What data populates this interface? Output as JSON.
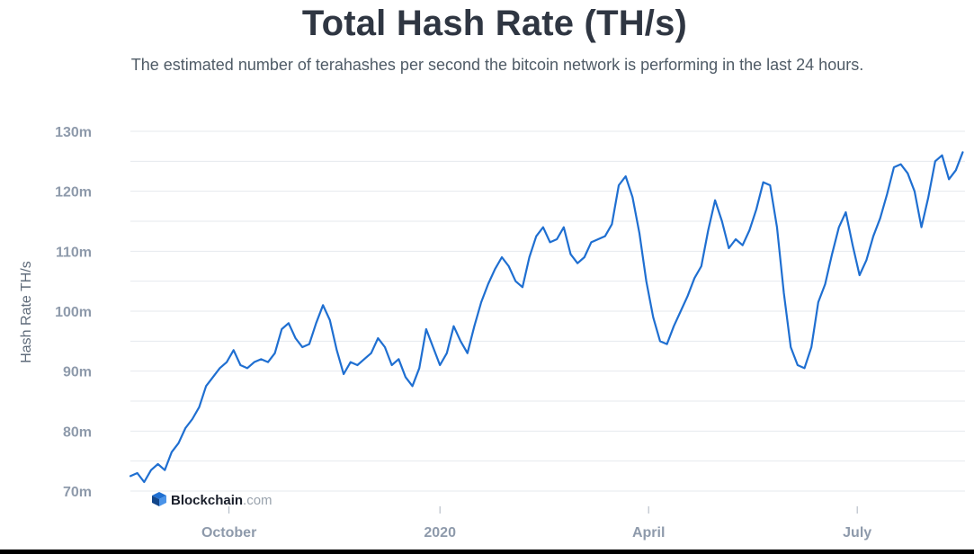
{
  "chart_data": {
    "type": "line",
    "title": "Total Hash Rate (TH/s)",
    "subtitle": "The estimated number of terahashes per second the bitcoin network is performing in the last 24 hours.",
    "ylabel": "Hash Rate TH/s",
    "xlabel": "",
    "ylim": [
      70,
      130
    ],
    "y_ticks": [
      {
        "value": 70,
        "label": "70m"
      },
      {
        "value": 80,
        "label": "80m"
      },
      {
        "value": 90,
        "label": "90m"
      },
      {
        "value": 100,
        "label": "100m"
      },
      {
        "value": 110,
        "label": "110m"
      },
      {
        "value": 120,
        "label": "120m"
      },
      {
        "value": 130,
        "label": "130m"
      }
    ],
    "x_ticks": [
      {
        "label": "October",
        "date": "2019-10-01"
      },
      {
        "label": "2020",
        "date": "2020-01-01"
      },
      {
        "label": "April",
        "date": "2020-04-01"
      },
      {
        "label": "July",
        "date": "2020-07-01"
      }
    ],
    "xlim": [
      "2019-08-19",
      "2020-08-17"
    ],
    "grid": true,
    "series": [
      {
        "color": "#1f6fd1",
        "points": [
          [
            "2019-08-19",
            72.5
          ],
          [
            "2019-08-22",
            73.0
          ],
          [
            "2019-08-25",
            71.5
          ],
          [
            "2019-08-28",
            73.5
          ],
          [
            "2019-08-31",
            74.5
          ],
          [
            "2019-09-03",
            73.5
          ],
          [
            "2019-09-06",
            76.5
          ],
          [
            "2019-09-09",
            78.0
          ],
          [
            "2019-09-12",
            80.5
          ],
          [
            "2019-09-15",
            82.0
          ],
          [
            "2019-09-18",
            84.0
          ],
          [
            "2019-09-21",
            87.5
          ],
          [
            "2019-09-24",
            89.0
          ],
          [
            "2019-09-27",
            90.5
          ],
          [
            "2019-09-30",
            91.5
          ],
          [
            "2019-10-03",
            93.5
          ],
          [
            "2019-10-06",
            91.0
          ],
          [
            "2019-10-09",
            90.5
          ],
          [
            "2019-10-12",
            91.5
          ],
          [
            "2019-10-15",
            92.0
          ],
          [
            "2019-10-18",
            91.5
          ],
          [
            "2019-10-21",
            93.0
          ],
          [
            "2019-10-24",
            97.0
          ],
          [
            "2019-10-27",
            98.0
          ],
          [
            "2019-10-30",
            95.5
          ],
          [
            "2019-11-02",
            94.0
          ],
          [
            "2019-11-05",
            94.5
          ],
          [
            "2019-11-08",
            98.0
          ],
          [
            "2019-11-11",
            101.0
          ],
          [
            "2019-11-14",
            98.5
          ],
          [
            "2019-11-17",
            93.5
          ],
          [
            "2019-11-20",
            89.5
          ],
          [
            "2019-11-23",
            91.5
          ],
          [
            "2019-11-26",
            91.0
          ],
          [
            "2019-11-29",
            92.0
          ],
          [
            "2019-12-02",
            93.0
          ],
          [
            "2019-12-05",
            95.5
          ],
          [
            "2019-12-08",
            94.0
          ],
          [
            "2019-12-11",
            91.0
          ],
          [
            "2019-12-14",
            92.0
          ],
          [
            "2019-12-17",
            89.0
          ],
          [
            "2019-12-20",
            87.5
          ],
          [
            "2019-12-23",
            90.5
          ],
          [
            "2019-12-26",
            97.0
          ],
          [
            "2019-12-29",
            94.0
          ],
          [
            "2020-01-01",
            91.0
          ],
          [
            "2020-01-04",
            93.0
          ],
          [
            "2020-01-07",
            97.5
          ],
          [
            "2020-01-10",
            95.0
          ],
          [
            "2020-01-13",
            93.0
          ],
          [
            "2020-01-16",
            97.5
          ],
          [
            "2020-01-19",
            101.5
          ],
          [
            "2020-01-22",
            104.5
          ],
          [
            "2020-01-25",
            107.0
          ],
          [
            "2020-01-28",
            109.0
          ],
          [
            "2020-01-31",
            107.5
          ],
          [
            "2020-02-03",
            105.0
          ],
          [
            "2020-02-06",
            104.0
          ],
          [
            "2020-02-09",
            109.0
          ],
          [
            "2020-02-12",
            112.5
          ],
          [
            "2020-02-15",
            114.0
          ],
          [
            "2020-02-18",
            111.5
          ],
          [
            "2020-02-21",
            112.0
          ],
          [
            "2020-02-24",
            114.0
          ],
          [
            "2020-02-27",
            109.5
          ],
          [
            "2020-03-01",
            108.0
          ],
          [
            "2020-03-04",
            109.0
          ],
          [
            "2020-03-07",
            111.5
          ],
          [
            "2020-03-10",
            112.0
          ],
          [
            "2020-03-13",
            112.5
          ],
          [
            "2020-03-16",
            114.5
          ],
          [
            "2020-03-19",
            121.0
          ],
          [
            "2020-03-22",
            122.5
          ],
          [
            "2020-03-25",
            119.0
          ],
          [
            "2020-03-28",
            113.0
          ],
          [
            "2020-03-31",
            105.0
          ],
          [
            "2020-04-03",
            99.0
          ],
          [
            "2020-04-06",
            95.0
          ],
          [
            "2020-04-09",
            94.5
          ],
          [
            "2020-04-12",
            97.5
          ],
          [
            "2020-04-15",
            100.0
          ],
          [
            "2020-04-18",
            102.5
          ],
          [
            "2020-04-21",
            105.5
          ],
          [
            "2020-04-24",
            107.5
          ],
          [
            "2020-04-27",
            113.5
          ],
          [
            "2020-04-30",
            118.5
          ],
          [
            "2020-05-03",
            115.0
          ],
          [
            "2020-05-06",
            110.5
          ],
          [
            "2020-05-09",
            112.0
          ],
          [
            "2020-05-12",
            111.0
          ],
          [
            "2020-05-15",
            113.5
          ],
          [
            "2020-05-18",
            117.0
          ],
          [
            "2020-05-21",
            121.5
          ],
          [
            "2020-05-24",
            121.0
          ],
          [
            "2020-05-27",
            114.0
          ],
          [
            "2020-05-30",
            103.0
          ],
          [
            "2020-06-02",
            94.0
          ],
          [
            "2020-06-05",
            91.0
          ],
          [
            "2020-06-08",
            90.5
          ],
          [
            "2020-06-11",
            94.0
          ],
          [
            "2020-06-14",
            101.5
          ],
          [
            "2020-06-17",
            104.5
          ],
          [
            "2020-06-20",
            109.5
          ],
          [
            "2020-06-23",
            114.0
          ],
          [
            "2020-06-26",
            116.5
          ],
          [
            "2020-06-29",
            111.0
          ],
          [
            "2020-07-02",
            106.0
          ],
          [
            "2020-07-05",
            108.5
          ],
          [
            "2020-07-08",
            112.5
          ],
          [
            "2020-07-11",
            115.5
          ],
          [
            "2020-07-14",
            119.5
          ],
          [
            "2020-07-17",
            124.0
          ],
          [
            "2020-07-20",
            124.5
          ],
          [
            "2020-07-23",
            123.0
          ],
          [
            "2020-07-26",
            120.0
          ],
          [
            "2020-07-29",
            114.0
          ],
          [
            "2020-08-01",
            119.0
          ],
          [
            "2020-08-04",
            125.0
          ],
          [
            "2020-08-07",
            126.0
          ],
          [
            "2020-08-10",
            122.0
          ],
          [
            "2020-08-13",
            123.5
          ],
          [
            "2020-08-16",
            126.5
          ]
        ]
      }
    ]
  },
  "watermark": {
    "brand": "Blockchain",
    "suffix": ".com",
    "icon": "blockchain-cube-icon",
    "icon_color": "#1f6fd1"
  }
}
